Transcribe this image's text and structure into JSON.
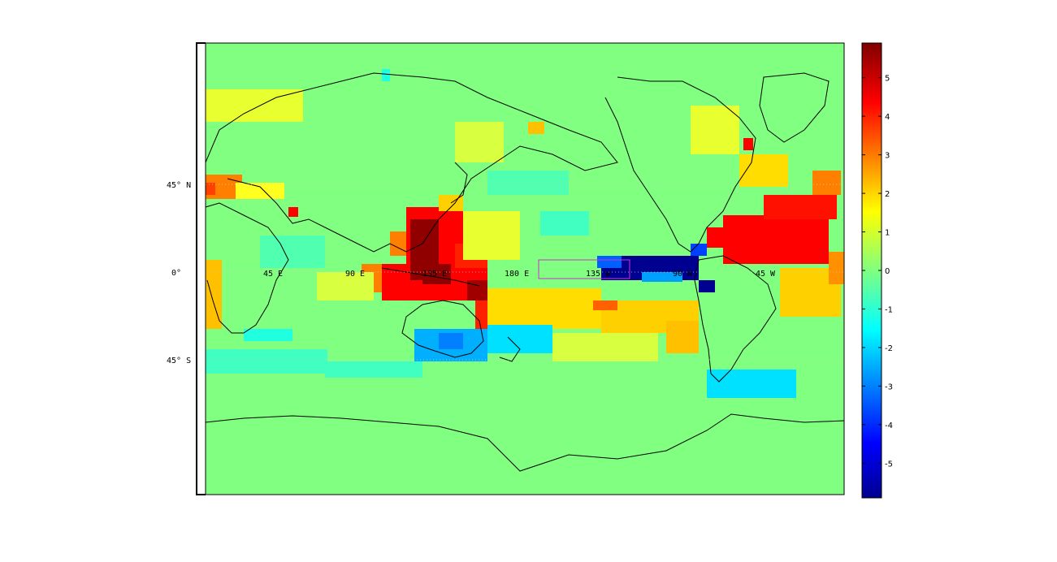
{
  "figure": {
    "background": "#ffffff",
    "map_background": "#80ff80",
    "frame_color": "#000000",
    "box_color": "#cc33cc"
  },
  "map": {
    "projection": "cylindrical equidistant, centered on 150 E",
    "lat_labels": [
      "45° N",
      "0°",
      "45° S"
    ],
    "lon_labels": [
      "45 E",
      "90 E",
      "135 E",
      "180 E",
      "135 W",
      "90 W",
      "45 W"
    ],
    "region_box": "Niño 3.4 style region, 170W–120W, 5S–5N",
    "colormap": "jet"
  },
  "colorbar": {
    "ticks": [
      "5",
      "4",
      "3",
      "2",
      "1",
      "0",
      "-1",
      "-2",
      "-3",
      "-4",
      "-5"
    ],
    "range": [
      -5.9,
      5.9
    ],
    "colormap_stops": [
      "#00008f",
      "#0000ff",
      "#00ffff",
      "#80ff80",
      "#ffff00",
      "#ff0000",
      "#800000"
    ]
  }
}
